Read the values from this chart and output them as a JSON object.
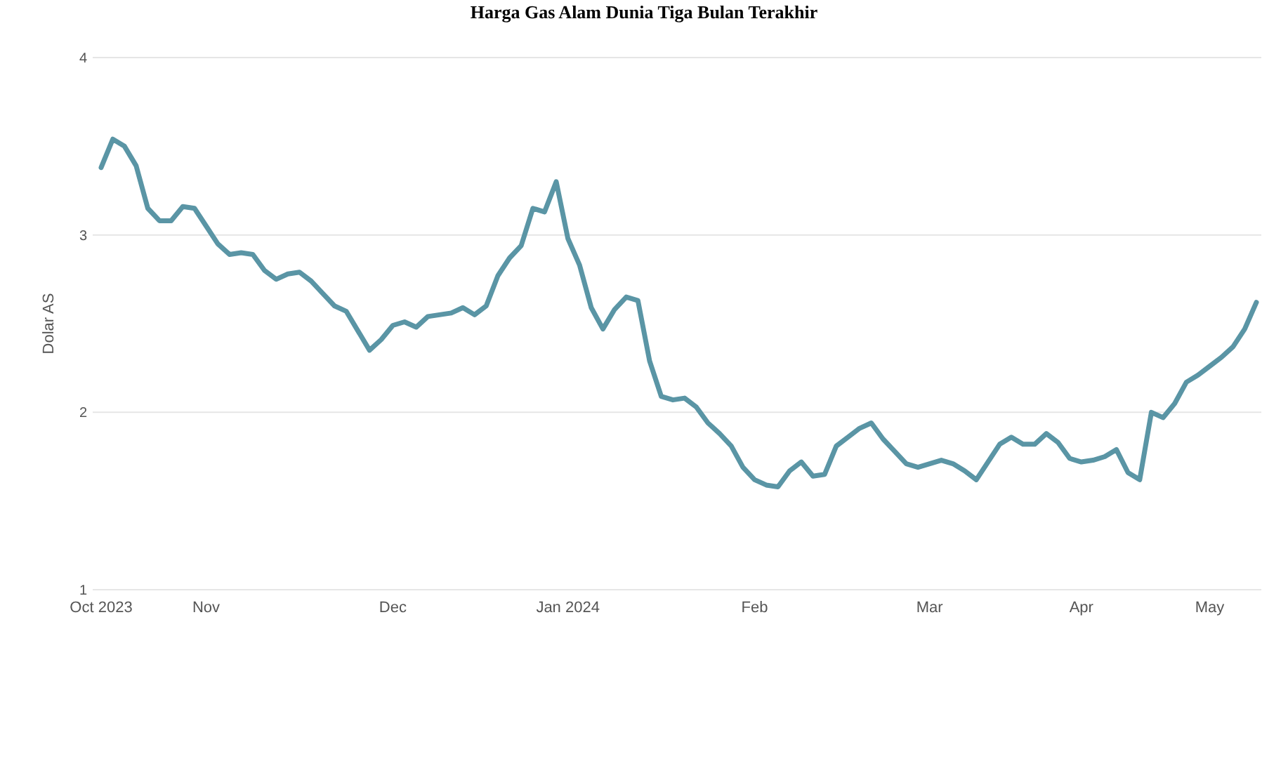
{
  "chart_data": {
    "type": "line",
    "title": "Harga Gas Alam Dunia Tiga Bulan Terakhir",
    "ylabel": "Dolar AS",
    "categories": [
      "Oct 2023",
      null,
      null,
      null,
      null,
      null,
      null,
      null,
      null,
      "Nov",
      null,
      null,
      null,
      null,
      null,
      null,
      null,
      null,
      null,
      null,
      null,
      null,
      null,
      null,
      null,
      "Dec",
      null,
      null,
      null,
      null,
      null,
      null,
      null,
      null,
      null,
      null,
      null,
      null,
      null,
      null,
      "Jan 2024",
      null,
      null,
      null,
      null,
      null,
      null,
      null,
      null,
      null,
      null,
      null,
      null,
      null,
      null,
      null,
      "Feb",
      null,
      null,
      null,
      null,
      null,
      null,
      null,
      null,
      null,
      null,
      null,
      null,
      null,
      null,
      "Mar",
      null,
      null,
      null,
      null,
      null,
      null,
      null,
      null,
      null,
      null,
      null,
      null,
      "Apr",
      null,
      null,
      null,
      null,
      null,
      null,
      null,
      null,
      null,
      null,
      "May",
      null,
      null,
      null,
      null
    ],
    "series": [
      {
        "color": "#5a95a5",
        "values": [
          3.38,
          3.54,
          3.5,
          3.39,
          3.15,
          3.08,
          3.08,
          3.16,
          3.15,
          3.05,
          2.95,
          2.89,
          2.9,
          2.89,
          2.8,
          2.75,
          2.78,
          2.79,
          2.74,
          2.67,
          2.6,
          2.57,
          2.46,
          2.35,
          2.41,
          2.49,
          2.51,
          2.48,
          2.54,
          2.55,
          2.56,
          2.59,
          2.55,
          2.6,
          2.77,
          2.87,
          2.94,
          3.15,
          3.13,
          3.3,
          2.98,
          2.83,
          2.59,
          2.47,
          2.58,
          2.65,
          2.63,
          2.29,
          2.09,
          2.07,
          2.08,
          2.03,
          1.94,
          1.88,
          1.81,
          1.69,
          1.62,
          1.59,
          1.58,
          1.67,
          1.72,
          1.64,
          1.65,
          1.81,
          1.86,
          1.91,
          1.94,
          1.85,
          1.78,
          1.71,
          1.69,
          1.71,
          1.73,
          1.71,
          1.67,
          1.62,
          1.72,
          1.82,
          1.86,
          1.82,
          1.82,
          1.88,
          1.83,
          1.74,
          1.72,
          1.73,
          1.75,
          1.79,
          1.66,
          1.62,
          2.0,
          1.97,
          2.05,
          2.17,
          2.21,
          2.26,
          2.31,
          2.37,
          2.47,
          2.62
        ]
      }
    ],
    "ylim": [
      1,
      4
    ],
    "yticks": [
      1,
      2,
      3,
      4
    ],
    "grid": "y"
  }
}
